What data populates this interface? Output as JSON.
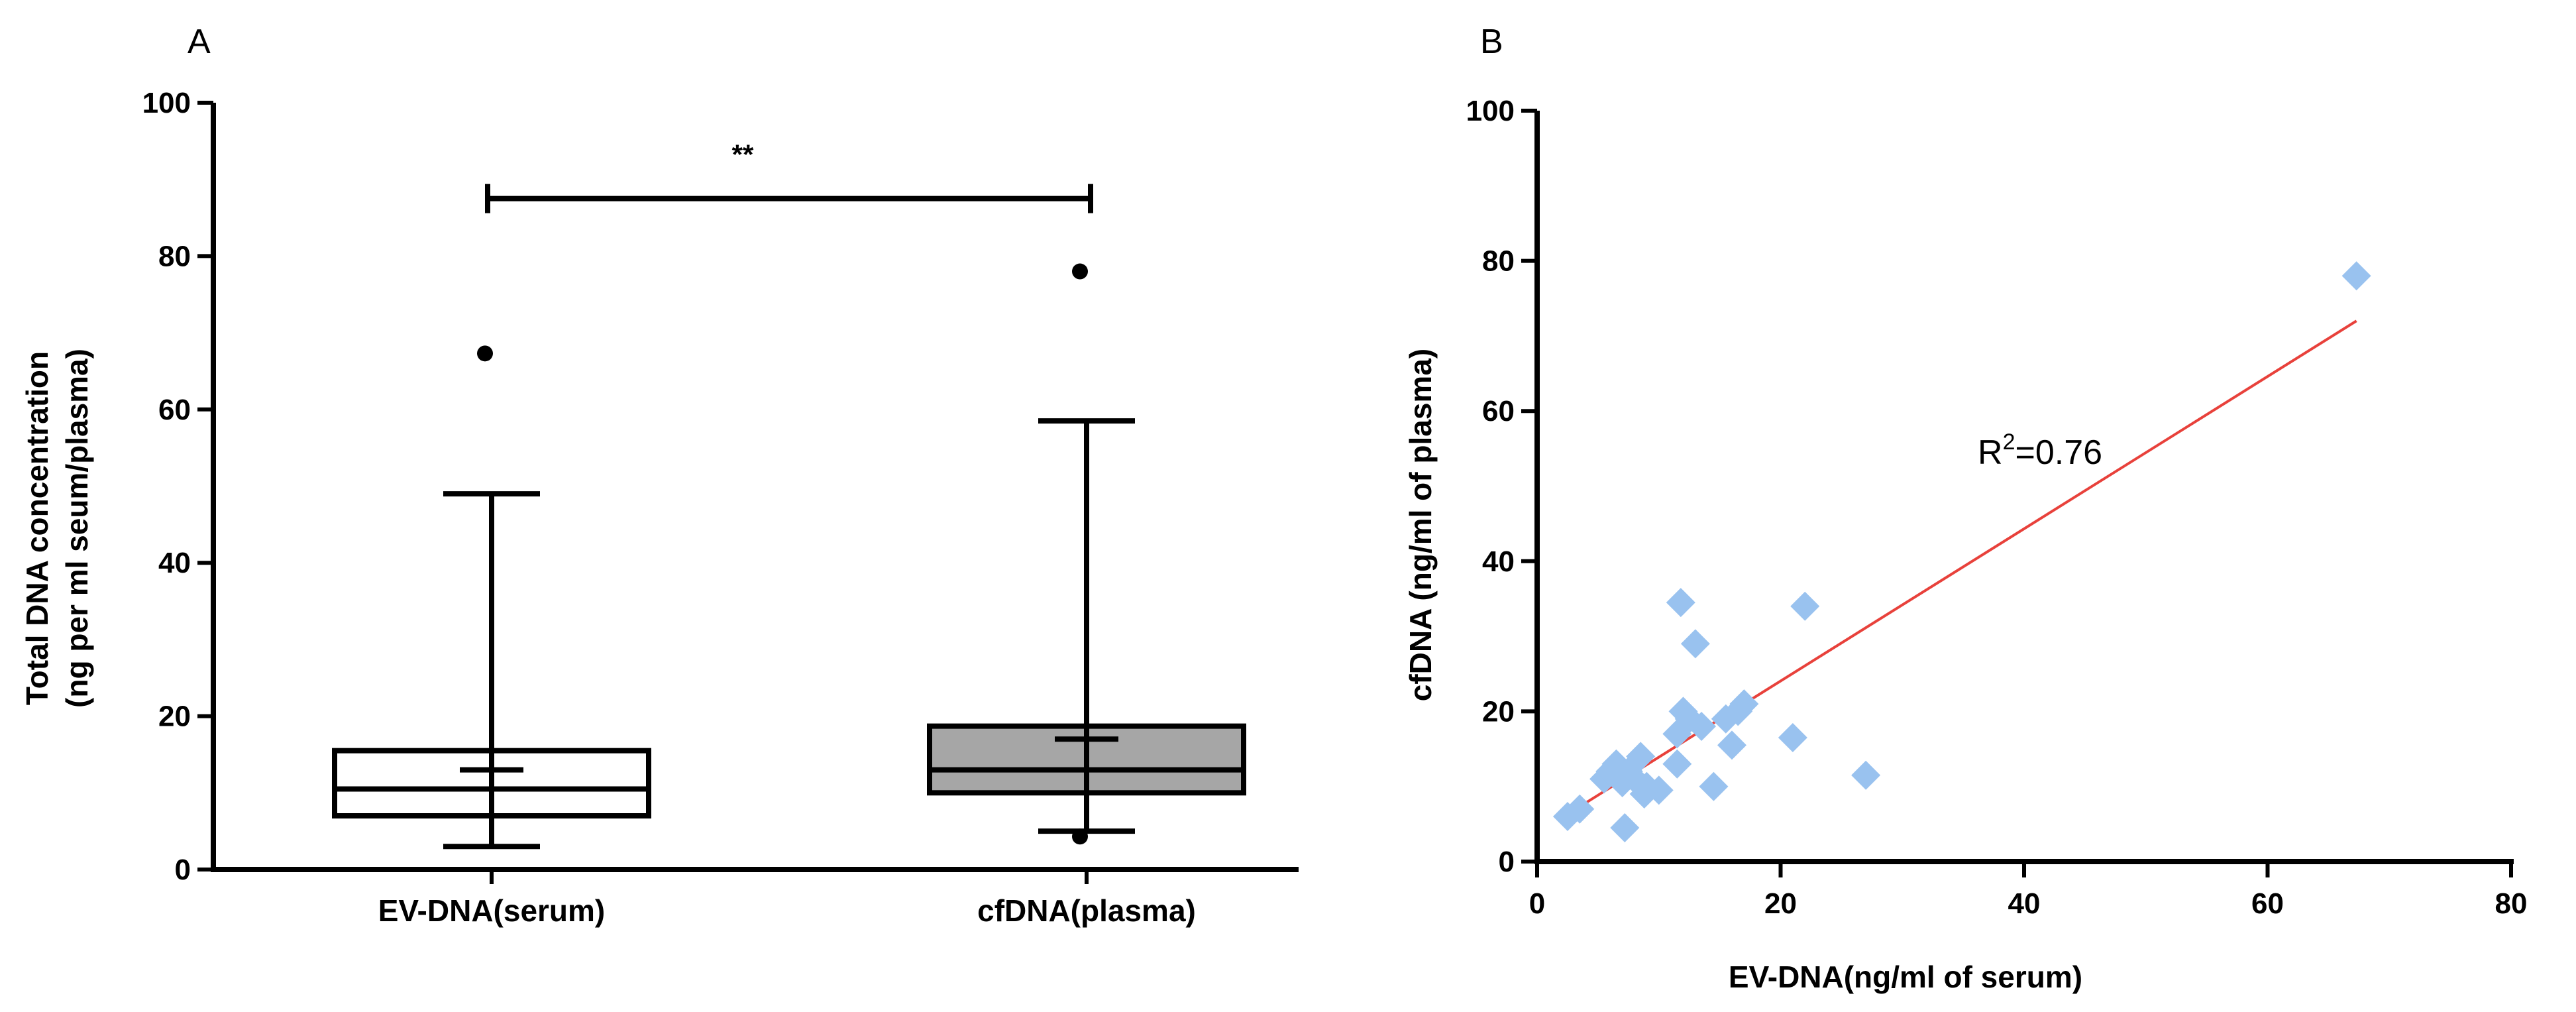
{
  "figure": {
    "panel_a_label": "A",
    "panel_b_label": "B"
  },
  "chart_data": [
    {
      "type": "box",
      "panel": "A",
      "ylabel_line1": "Total DNA concentration",
      "ylabel_line2": "(ng per ml seum/plasma)",
      "xlabel": "",
      "ylim": [
        0,
        100
      ],
      "yticks": [
        0,
        20,
        40,
        60,
        80,
        100
      ],
      "categories": [
        "EV-DNA(serum)",
        "cfDNA(plasma)"
      ],
      "boxes": [
        {
          "name": "EV-DNA(serum)",
          "whisker_low": 3,
          "q1": 7,
          "median": 10.5,
          "q3": 15.5,
          "whisker_high": 49,
          "mean": 13,
          "outliers": [
            67.3
          ],
          "fill": "#ffffff"
        },
        {
          "name": "cfDNA(plasma)",
          "whisker_low": 5,
          "q1": 10,
          "median": 13,
          "q3": 18.7,
          "whisker_high": 58.5,
          "mean": 17,
          "outliers": [
            78,
            4.3
          ],
          "fill": "#a6a6a6"
        }
      ],
      "significance": {
        "label": "**",
        "y": 87.5
      }
    },
    {
      "type": "scatter",
      "panel": "B",
      "xlabel": "EV-DNA(ng/ml of serum)",
      "ylabel": "cfDNA (ng/ml of plasma)",
      "xlim": [
        0,
        80
      ],
      "ylim": [
        0,
        100
      ],
      "xticks": [
        0,
        20,
        40,
        60,
        80
      ],
      "yticks": [
        0,
        20,
        40,
        60,
        80,
        100
      ],
      "marker_color": "#99c2ef",
      "line_color": "#e8413b",
      "annotation_base": "R",
      "annotation_sup": "2",
      "annotation_rest": "=0.76",
      "points": [
        [
          2.5,
          6
        ],
        [
          3.5,
          7
        ],
        [
          5.5,
          11
        ],
        [
          6,
          12
        ],
        [
          6.5,
          13
        ],
        [
          7,
          10.5
        ],
        [
          7.2,
          4.5
        ],
        [
          7.5,
          12
        ],
        [
          8,
          11
        ],
        [
          8.5,
          14
        ],
        [
          8.8,
          9
        ],
        [
          9,
          10
        ],
        [
          10,
          9.5
        ],
        [
          11.5,
          13
        ],
        [
          11.5,
          17
        ],
        [
          11.8,
          34.5
        ],
        [
          12,
          20
        ],
        [
          12.5,
          19
        ],
        [
          13,
          29
        ],
        [
          13.5,
          18
        ],
        [
          14.5,
          10
        ],
        [
          15.5,
          19
        ],
        [
          16,
          15.5
        ],
        [
          16.5,
          20
        ],
        [
          17,
          21
        ],
        [
          21,
          16.5
        ],
        [
          22,
          34
        ],
        [
          27,
          11.5
        ],
        [
          67.3,
          78
        ]
      ],
      "regression": {
        "x": [
          2.5,
          67.3
        ],
        "y": [
          6.3,
          72
        ]
      }
    }
  ]
}
